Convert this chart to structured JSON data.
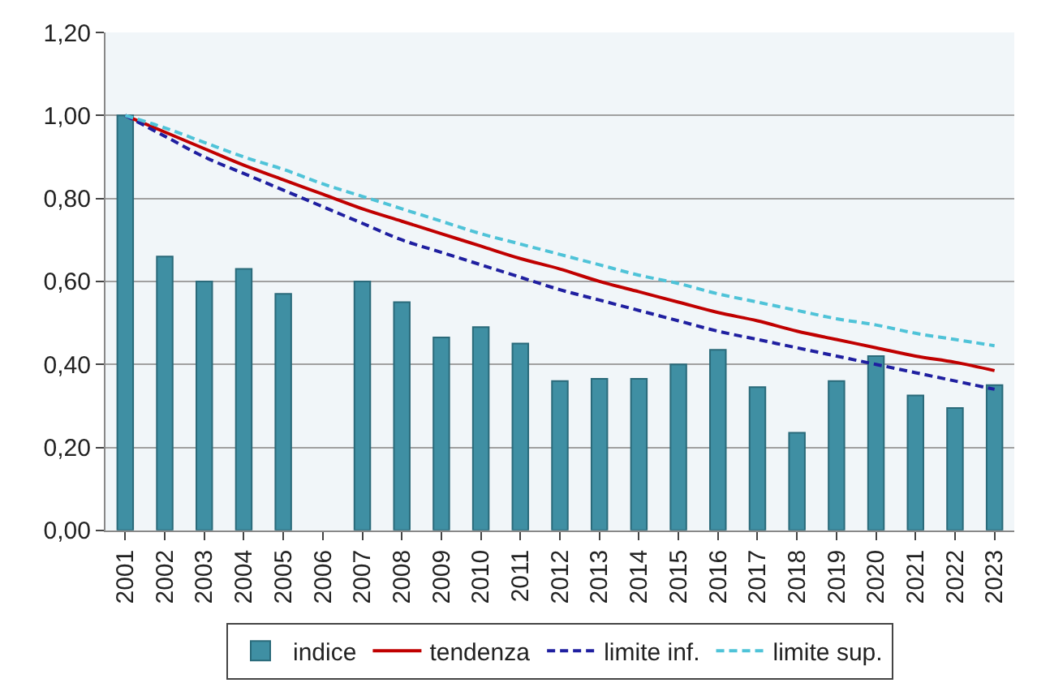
{
  "chart_data": {
    "type": "bar",
    "categories": [
      "2001",
      "2002",
      "2003",
      "2004",
      "2005",
      "2006",
      "2007",
      "2008",
      "2009",
      "2010",
      "2011",
      "2012",
      "2013",
      "2014",
      "2015",
      "2016",
      "2017",
      "2018",
      "2019",
      "2020",
      "2021",
      "2022",
      "2023"
    ],
    "series": [
      {
        "name": "indice",
        "color": "#3f8fa3",
        "values": [
          1.0,
          0.66,
          0.6,
          0.63,
          0.57,
          null,
          0.6,
          0.55,
          0.465,
          0.49,
          0.45,
          0.36,
          0.365,
          0.365,
          0.4,
          0.435,
          0.345,
          0.235,
          0.36,
          0.42,
          0.325,
          0.295,
          0.35
        ]
      },
      {
        "name": "tendenza",
        "type": "line",
        "color": "#c00000",
        "line_style": "solid",
        "values": [
          1.0,
          0.96,
          0.92,
          0.88,
          0.845,
          0.81,
          0.775,
          0.745,
          0.715,
          0.685,
          0.655,
          0.63,
          0.6,
          0.575,
          0.55,
          0.525,
          0.505,
          0.48,
          0.46,
          0.44,
          0.42,
          0.405,
          0.385
        ]
      },
      {
        "name": "limite inf.",
        "type": "line",
        "color": "#1f1fa0",
        "line_style": "dashed",
        "values": [
          1.0,
          0.95,
          0.9,
          0.86,
          0.82,
          0.78,
          0.74,
          0.7,
          0.67,
          0.64,
          0.61,
          0.58,
          0.555,
          0.53,
          0.505,
          0.48,
          0.46,
          0.44,
          0.42,
          0.4,
          0.38,
          0.36,
          0.34
        ]
      },
      {
        "name": "limite sup.",
        "type": "line",
        "color": "#4fc3d8",
        "line_style": "dashed",
        "values": [
          1.0,
          0.97,
          0.935,
          0.9,
          0.87,
          0.835,
          0.805,
          0.775,
          0.745,
          0.715,
          0.69,
          0.665,
          0.64,
          0.615,
          0.595,
          0.57,
          0.55,
          0.53,
          0.51,
          0.495,
          0.475,
          0.46,
          0.445
        ]
      }
    ],
    "ylim": [
      0,
      1.2
    ],
    "yticks": [
      {
        "value": 0,
        "label": "0,00"
      },
      {
        "value": 0.2,
        "label": "0,20"
      },
      {
        "value": 0.4,
        "label": "0,40"
      },
      {
        "value": 0.6,
        "label": "0,60"
      },
      {
        "value": 0.8,
        "label": "0,80"
      },
      {
        "value": 1.0,
        "label": "1,00"
      },
      {
        "value": 1.2,
        "label": "1,20"
      }
    ],
    "grid": "y",
    "legend": "bottom",
    "marker": "none"
  }
}
